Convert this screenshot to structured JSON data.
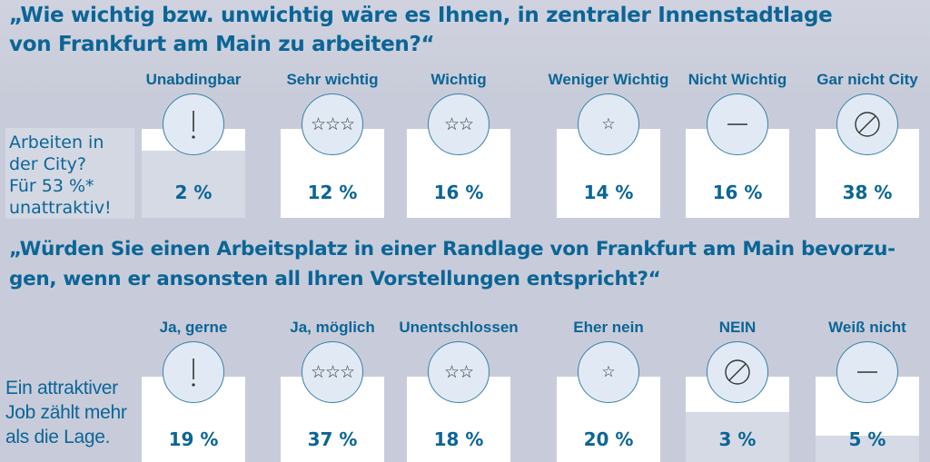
{
  "colors": {
    "accent": "#0b6596",
    "background": "#c8ccda",
    "card": "#ffffff",
    "fill": "#d5dae5",
    "circle": "#e1eaf4"
  },
  "q1": {
    "title_line1": "„Wie wichtig bzw. unwichtig wäre es Ihnen, in zentraler Innenstadtlage",
    "title_line2": "von Frankfurt am Main zu arbeiten?“",
    "side_label": [
      "Arbeiten in",
      "der City?",
      "Für 53 %*",
      "unattraktiv!"
    ],
    "options": [
      {
        "label": "Unabdingbar",
        "value": "2 %",
        "icon": "exclamation-icon",
        "fill_pct": 76
      },
      {
        "label": "Sehr wichtig",
        "value": "12 %",
        "icon": "three-stars-icon",
        "fill_pct": 0
      },
      {
        "label": "Wichtig",
        "value": "16 %",
        "icon": "two-stars-icon",
        "fill_pct": 0
      },
      {
        "label": "Weniger Wichtig",
        "value": "14 %",
        "icon": "one-star-icon",
        "fill_pct": 0
      },
      {
        "label": "Nicht Wichtig",
        "value": "16 %",
        "icon": "dash-icon",
        "fill_pct": 0
      },
      {
        "label": "Gar nicht City",
        "value": "38 %",
        "icon": "prohibited-icon",
        "fill_pct": 0
      }
    ]
  },
  "q2": {
    "title_line1": "„Würden Sie einen Arbeitsplatz in einer Randlage von Frankfurt am Main bevorzu-",
    "title_line2": "gen, wenn er ansonsten all Ihren Vorstellungen entspricht?“",
    "side_label": [
      "Ein attraktiver",
      "Job zählt mehr",
      "als die Lage."
    ],
    "options": [
      {
        "label": "Ja, gerne",
        "value": "19 %",
        "icon": "exclamation-icon",
        "fill_pct": 0
      },
      {
        "label": "Ja, möglich",
        "value": "37 %",
        "icon": "three-stars-icon",
        "fill_pct": 0
      },
      {
        "label": "Unentschlossen",
        "value": "18 %",
        "icon": "two-stars-icon",
        "fill_pct": 0
      },
      {
        "label": "Eher nein",
        "value": "20 %",
        "icon": "one-star-icon",
        "fill_pct": 0
      },
      {
        "label": "NEIN",
        "value": "3 %",
        "icon": "prohibited-icon",
        "fill_pct": 59
      },
      {
        "label": "Weiß nicht",
        "value": "5 %",
        "icon": "dash-icon",
        "fill_pct": 31
      }
    ]
  }
}
